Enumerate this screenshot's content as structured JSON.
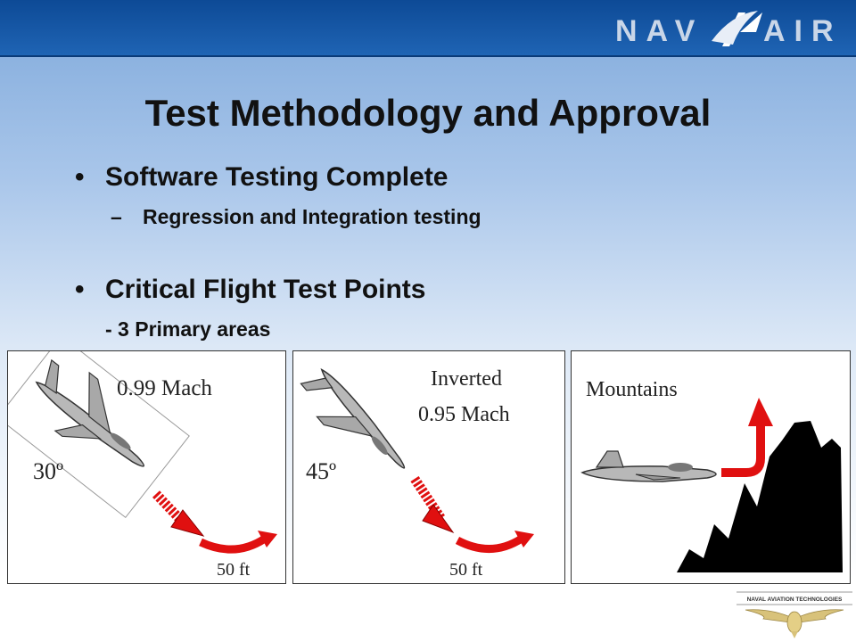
{
  "header": {
    "logo_text": "NAVAIR"
  },
  "slide": {
    "title": "Test Methodology and Approval",
    "bullets": [
      {
        "text": "Software Testing Complete",
        "sub": "Regression and Integration testing"
      },
      {
        "text": "Critical Flight Test Points",
        "sub": "- 3 Primary areas"
      }
    ]
  },
  "panels": [
    {
      "speed": "0.99 Mach",
      "angle": "30º",
      "altitude": "50 ft"
    },
    {
      "mode": "Inverted",
      "speed": "0.95 Mach",
      "angle": "45º",
      "altitude": "50 ft"
    },
    {
      "terrain": "Mountains"
    }
  ],
  "footer": {
    "logo_caption": "NAVAL AVIATION TECHNOLOGIES"
  },
  "colors": {
    "header": "#1a5aaa",
    "arrow": "#e01010",
    "mountain": "#000000"
  }
}
